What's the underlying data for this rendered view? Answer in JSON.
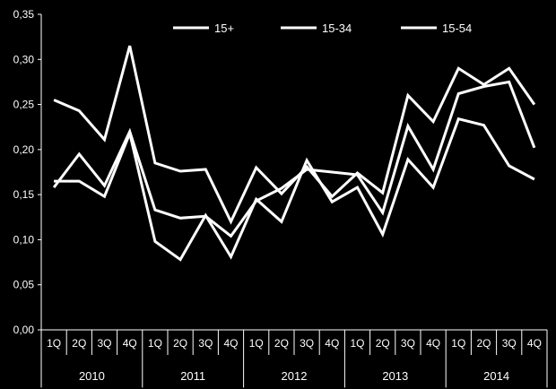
{
  "chart_data": {
    "type": "line",
    "title": "",
    "xlabel": "",
    "ylabel": "",
    "ylim": [
      0,
      0.35
    ],
    "yticks": [
      "0,00",
      "0,05",
      "0,10",
      "0,15",
      "0,20",
      "0,25",
      "0,30",
      "0,35"
    ],
    "grid": false,
    "legend_position": "top",
    "categories": [
      "1Q",
      "2Q",
      "3Q",
      "4Q",
      "1Q",
      "2Q",
      "3Q",
      "4Q",
      "1Q",
      "2Q",
      "3Q",
      "4Q",
      "1Q",
      "2Q",
      "3Q",
      "4Q",
      "1Q",
      "2Q",
      "3Q",
      "4Q"
    ],
    "groups": [
      "2010",
      "2011",
      "2012",
      "2013",
      "2014"
    ],
    "series": [
      {
        "name": "15+",
        "values": [
          0.165,
          0.165,
          0.148,
          0.218,
          0.098,
          0.078,
          0.127,
          0.081,
          0.145,
          0.12,
          0.188,
          0.142,
          0.158,
          0.106,
          0.189,
          0.158,
          0.234,
          0.227,
          0.182,
          0.167
        ]
      },
      {
        "name": "15-34",
        "values": [
          0.255,
          0.243,
          0.211,
          0.315,
          0.185,
          0.176,
          0.178,
          0.12,
          0.18,
          0.151,
          0.181,
          0.148,
          0.174,
          0.152,
          0.26,
          0.231,
          0.29,
          0.272,
          0.29,
          0.25
        ]
      },
      {
        "name": "15-54",
        "values": [
          0.158,
          0.195,
          0.16,
          0.22,
          0.133,
          0.124,
          0.126,
          0.104,
          0.143,
          0.157,
          0.178,
          0.175,
          0.172,
          0.13,
          0.226,
          0.178,
          0.262,
          0.27,
          0.275,
          0.202
        ]
      }
    ]
  },
  "colors": {
    "background": "#000000",
    "line": "#ffffff",
    "axis": "#ffffff",
    "text": "#ffffff"
  }
}
